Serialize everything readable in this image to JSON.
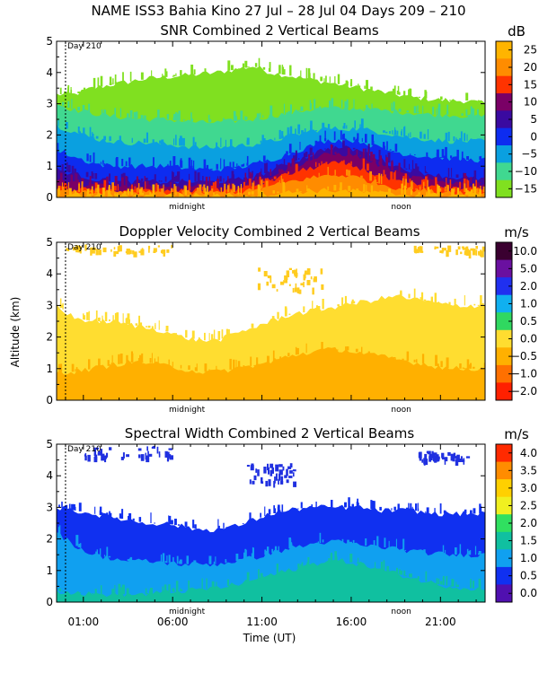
{
  "figure": {
    "title": "NAME ISS3 Bahia Kino  27 Jul – 28 Jul 04 Days 209 – 210",
    "xlabel": "Time (UT)",
    "ylabel": "Altitude (km)",
    "x_ticks": [
      "01:00",
      "06:00",
      "11:00",
      "16:00",
      "21:00"
    ],
    "y_ticks": [
      "0",
      "1",
      "2",
      "3",
      "4",
      "5"
    ],
    "day_marker": "Day 210",
    "midnight_label": "midnight",
    "noon_label": "noon"
  },
  "chart_data": [
    {
      "type": "heatmap",
      "title": "SNR Combined 2 Vertical Beams",
      "units": "dB",
      "xlim_hours_ut": [
        -0.5,
        23.5
      ],
      "ylim_km": [
        0,
        5
      ],
      "colorbar": {
        "labels": [
          "25",
          "20",
          "15",
          "10",
          "5",
          "0",
          "−5",
          "−10",
          "−15"
        ],
        "colors": [
          "#ffb400",
          "#ff8c00",
          "#ff3300",
          "#7a0066",
          "#3a0aa0",
          "#0d2cf0",
          "#0aa0e0",
          "#40d890",
          "#80e020"
        ]
      },
      "layers_top_km": [
        {
          "level": "25",
          "values": [
            0.07,
            0.07,
            0.07,
            0.07,
            0.07,
            0.07,
            0.07,
            0.07,
            0.07,
            0.07,
            0.08,
            0.09,
            0.12,
            0.16,
            0.2,
            0.22,
            0.22,
            0.18,
            0.14,
            0.1,
            0.08,
            0.07,
            0.07,
            0.07,
            0.07
          ]
        },
        {
          "level": "20",
          "values": [
            0.2,
            0.18,
            0.16,
            0.15,
            0.15,
            0.15,
            0.15,
            0.15,
            0.15,
            0.15,
            0.17,
            0.22,
            0.35,
            0.5,
            0.6,
            0.7,
            0.72,
            0.62,
            0.45,
            0.32,
            0.25,
            0.2,
            0.18,
            0.17,
            0.17
          ]
        },
        {
          "level": "15",
          "values": [
            0.3,
            0.26,
            0.24,
            0.22,
            0.22,
            0.22,
            0.22,
            0.22,
            0.22,
            0.22,
            0.25,
            0.35,
            0.55,
            0.75,
            0.9,
            1.05,
            1.1,
            0.95,
            0.7,
            0.5,
            0.4,
            0.32,
            0.28,
            0.26,
            0.25
          ]
        },
        {
          "level": "10",
          "values": [
            0.55,
            0.45,
            0.4,
            0.35,
            0.35,
            0.35,
            0.35,
            0.35,
            0.35,
            0.36,
            0.4,
            0.5,
            0.7,
            0.95,
            1.15,
            1.35,
            1.4,
            1.3,
            1.05,
            0.8,
            0.65,
            0.55,
            0.5,
            0.45,
            0.45
          ]
        },
        {
          "level": "5",
          "values": [
            0.9,
            0.75,
            0.6,
            0.5,
            0.5,
            0.5,
            0.5,
            0.5,
            0.5,
            0.5,
            0.55,
            0.65,
            0.85,
            1.1,
            1.3,
            1.55,
            1.6,
            1.5,
            1.25,
            1.0,
            0.85,
            0.75,
            0.65,
            0.6,
            0.6
          ]
        },
        {
          "level": "0",
          "values": [
            1.5,
            1.3,
            1.1,
            1.0,
            1.0,
            1.0,
            1.0,
            0.95,
            0.9,
            0.9,
            0.95,
            1.05,
            1.2,
            1.4,
            1.6,
            1.8,
            1.85,
            1.8,
            1.6,
            1.45,
            1.35,
            1.3,
            1.25,
            1.2,
            1.2
          ]
        },
        {
          "level": "-5",
          "values": [
            2.3,
            2.1,
            1.9,
            1.8,
            1.75,
            1.75,
            1.7,
            1.65,
            1.6,
            1.6,
            1.65,
            1.7,
            1.8,
            1.95,
            2.1,
            2.2,
            2.2,
            2.2,
            2.1,
            2.0,
            1.9,
            1.85,
            1.8,
            1.8,
            1.8
          ]
        },
        {
          "level": "-10",
          "values": [
            3.0,
            2.8,
            2.7,
            2.6,
            2.55,
            2.5,
            2.5,
            2.45,
            2.4,
            2.4,
            2.45,
            2.5,
            2.6,
            2.7,
            2.8,
            2.85,
            2.85,
            2.85,
            2.8,
            2.75,
            2.7,
            2.65,
            2.65,
            2.6,
            2.6
          ]
        },
        {
          "level": "-15",
          "values": [
            3.3,
            3.3,
            3.5,
            3.6,
            3.7,
            3.8,
            3.85,
            3.9,
            3.95,
            4.0,
            4.1,
            4.2,
            4.0,
            3.9,
            3.8,
            3.7,
            3.6,
            3.5,
            3.4,
            3.3,
            3.2,
            3.15,
            3.1,
            3.1,
            3.0
          ]
        }
      ]
    },
    {
      "type": "heatmap",
      "title": "Doppler Velocity Combined 2 Vertical Beams",
      "units": "m/s",
      "xlim_hours_ut": [
        -0.5,
        23.5
      ],
      "ylim_km": [
        0,
        5
      ],
      "colorbar": {
        "labels": [
          "10.0",
          "5.0",
          "2.0",
          "1.0",
          "0.5",
          "0.0",
          "−0.5",
          "−1.0",
          "−2.0"
        ],
        "colors": [
          "#3a0030",
          "#6a10a0",
          "#2030f0",
          "#10b0f0",
          "#30d860",
          "#ffdd30",
          "#ffb000",
          "#ff7000",
          "#ff2000"
        ]
      },
      "layers_top_km": [
        {
          "level": "-0.5",
          "values": [
            0.9,
            0.9,
            1.0,
            1.1,
            1.2,
            1.2,
            1.1,
            1.0,
            0.9,
            0.9,
            1.0,
            1.1,
            1.2,
            1.4,
            1.5,
            1.6,
            1.6,
            1.5,
            1.4,
            1.3,
            1.2,
            1.1,
            1.0,
            1.0,
            1.0
          ]
        },
        {
          "level": "0.0",
          "values": [
            3.0,
            2.6,
            2.5,
            2.5,
            2.4,
            2.3,
            2.2,
            2.0,
            1.9,
            1.9,
            2.1,
            2.3,
            2.5,
            2.7,
            2.8,
            2.9,
            3.0,
            3.1,
            3.2,
            3.3,
            3.2,
            3.1,
            3.0,
            3.0,
            3.0
          ]
        }
      ],
      "upper_patches_km": [
        {
          "x_hours": [
            0,
            6
          ],
          "y_km": [
            4.7,
            4.95
          ]
        },
        {
          "x_hours": [
            10.5,
            14.5
          ],
          "y_km": [
            3.5,
            4.2
          ]
        },
        {
          "x_hours": [
            19.5,
            23.5
          ],
          "y_km": [
            4.7,
            4.9
          ]
        }
      ]
    },
    {
      "type": "heatmap",
      "title": "Spectral Width Combined 2 Vertical Beams",
      "units": "m/s",
      "xlim_hours_ut": [
        -0.5,
        23.5
      ],
      "ylim_km": [
        0,
        5
      ],
      "colorbar": {
        "labels": [
          "4.0",
          "3.5",
          "3.0",
          "2.5",
          "2.0",
          "1.5",
          "1.0",
          "0.5",
          "0.0"
        ],
        "colors": [
          "#ff2a00",
          "#ff8c00",
          "#ffd000",
          "#f0f020",
          "#30e060",
          "#10c0a0",
          "#10a0f0",
          "#1030f0",
          "#5010b0"
        ]
      },
      "layers_top_km": [
        {
          "level": "1.5",
          "values": [
            0.35,
            0.3,
            0.25,
            0.25,
            0.25,
            0.25,
            0.3,
            0.35,
            0.4,
            0.45,
            0.55,
            0.7,
            0.85,
            1.0,
            1.15,
            1.3,
            1.3,
            1.2,
            1.05,
            0.9,
            0.75,
            0.6,
            0.5,
            0.45,
            0.4
          ]
        },
        {
          "level": "1.0",
          "values": [
            2.2,
            1.8,
            1.5,
            1.4,
            1.3,
            1.3,
            1.25,
            1.2,
            1.2,
            1.2,
            1.3,
            1.4,
            1.55,
            1.7,
            1.8,
            1.9,
            1.9,
            1.8,
            1.75,
            1.7,
            1.6,
            1.55,
            1.5,
            1.5,
            1.5
          ]
        },
        {
          "level": "0.5",
          "values": [
            3.0,
            2.9,
            2.8,
            2.7,
            2.6,
            2.5,
            2.5,
            2.4,
            2.3,
            2.3,
            2.4,
            2.6,
            2.8,
            2.9,
            3.0,
            3.0,
            3.0,
            3.0,
            2.9,
            2.9,
            2.9,
            2.8,
            2.8,
            2.8,
            2.8
          ]
        }
      ],
      "upper_patches_km": [
        {
          "x_hours": [
            1,
            6
          ],
          "y_km": [
            4.6,
            4.95
          ]
        },
        {
          "x_hours": [
            10,
            13
          ],
          "y_km": [
            3.8,
            4.4
          ]
        },
        {
          "x_hours": [
            19.5,
            22.5
          ],
          "y_km": [
            4.5,
            4.8
          ]
        }
      ]
    }
  ]
}
